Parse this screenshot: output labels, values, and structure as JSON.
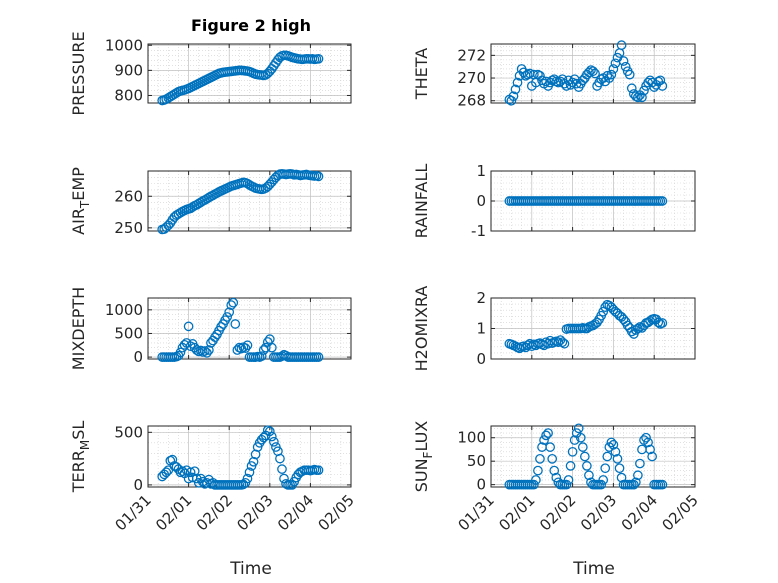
{
  "figure_title": "Figure 2 high",
  "x_axis_label": "Time",
  "x_tick_labels": [
    "01/31",
    "02/01",
    "02/02",
    "02/03",
    "02/04",
    "02/05"
  ],
  "colors": {
    "marker": "#0072bd",
    "axes": "#262626",
    "grid": "#c0c0c0"
  },
  "chart_data": [
    {
      "type": "scatter",
      "ylabel": "PRESSURE",
      "ylim": [
        770,
        1005
      ],
      "yticks": [
        800,
        900,
        1000
      ],
      "ytick_labels": [
        "800",
        "900",
        "1000"
      ],
      "xlabel": "",
      "xlim": [
        0,
        5
      ],
      "x": [
        0.35,
        0.4,
        0.45,
        0.5,
        0.55,
        0.6,
        0.65,
        0.7,
        0.75,
        0.8,
        0.85,
        0.9,
        0.95,
        1.0,
        1.05,
        1.1,
        1.15,
        1.2,
        1.25,
        1.3,
        1.35,
        1.4,
        1.45,
        1.5,
        1.55,
        1.6,
        1.65,
        1.7,
        1.75,
        1.8,
        1.85,
        1.9,
        1.95,
        2.0,
        2.05,
        2.1,
        2.15,
        2.2,
        2.25,
        2.3,
        2.35,
        2.4,
        2.45,
        2.5,
        2.55,
        2.6,
        2.65,
        2.7,
        2.75,
        2.8,
        2.85,
        2.9,
        2.95,
        3.0,
        3.05,
        3.1,
        3.15,
        3.2,
        3.25,
        3.3,
        3.35,
        3.4,
        3.45,
        3.5,
        3.55,
        3.6,
        3.65,
        3.7,
        3.75,
        3.8,
        3.85,
        3.9,
        3.95,
        4.0,
        4.05,
        4.1,
        4.15,
        4.2
      ],
      "y": [
        780,
        782,
        785,
        790,
        795,
        800,
        805,
        810,
        815,
        818,
        820,
        822,
        825,
        828,
        832,
        836,
        840,
        844,
        848,
        852,
        856,
        860,
        864,
        868,
        872,
        876,
        880,
        884,
        888,
        890,
        892,
        893,
        894,
        895,
        896,
        897,
        898,
        899,
        900,
        900,
        899,
        898,
        897,
        895,
        892,
        888,
        885,
        883,
        882,
        881,
        880,
        882,
        888,
        896,
        906,
        918,
        930,
        942,
        952,
        958,
        960,
        960,
        958,
        955,
        952,
        950,
        948,
        946,
        945,
        944,
        945,
        946,
        946,
        945,
        946,
        944,
        945,
        946
      ]
    },
    {
      "type": "scatter",
      "ylabel": "THETA",
      "ylim": [
        267.8,
        273.0
      ],
      "yticks": [
        268,
        270,
        272
      ],
      "ytick_labels": [
        "268",
        "270",
        "272"
      ],
      "xlabel": "",
      "xlim": [
        0,
        5
      ],
      "x": [
        0.45,
        0.5,
        0.55,
        0.6,
        0.65,
        0.7,
        0.75,
        0.8,
        0.85,
        0.9,
        0.95,
        1.0,
        1.05,
        1.1,
        1.15,
        1.2,
        1.25,
        1.3,
        1.35,
        1.4,
        1.45,
        1.5,
        1.55,
        1.6,
        1.65,
        1.7,
        1.75,
        1.8,
        1.85,
        1.9,
        1.95,
        2.0,
        2.05,
        2.1,
        2.15,
        2.2,
        2.25,
        2.3,
        2.35,
        2.4,
        2.45,
        2.5,
        2.55,
        2.6,
        2.65,
        2.7,
        2.75,
        2.8,
        2.85,
        2.9,
        2.95,
        3.0,
        3.05,
        3.1,
        3.15,
        3.2,
        3.25,
        3.3,
        3.35,
        3.4,
        3.45,
        3.5,
        3.55,
        3.6,
        3.65,
        3.7,
        3.75,
        3.8,
        3.85,
        3.9,
        3.95,
        4.0,
        4.05,
        4.1,
        4.15,
        4.2
      ],
      "y": [
        268.1,
        268.0,
        268.4,
        269.0,
        269.6,
        270.2,
        270.8,
        270.5,
        270.2,
        270.3,
        270.4,
        269.3,
        270.3,
        269.6,
        270.3,
        270.2,
        269.8,
        269.5,
        269.7,
        269.3,
        269.6,
        269.8,
        269.9,
        269.7,
        269.6,
        269.7,
        269.9,
        269.5,
        269.3,
        269.8,
        269.4,
        269.6,
        269.9,
        269.5,
        269.2,
        269.5,
        269.8,
        270.0,
        270.3,
        270.5,
        270.7,
        270.6,
        270.4,
        269.3,
        269.6,
        269.9,
        270.0,
        269.7,
        270.2,
        270.0,
        270.3,
        270.8,
        271.3,
        271.8,
        272.2,
        272.9,
        271.5,
        271.0,
        270.6,
        270.3,
        269.1,
        268.6,
        268.4,
        268.3,
        268.5,
        268.3,
        268.9,
        269.3,
        269.6,
        269.8,
        269.6,
        269.2,
        269.4,
        269.7,
        269.8,
        269.3
      ]
    },
    {
      "type": "scatter",
      "ylabel": "AIR_TEMP",
      "ylim": [
        249,
        268
      ],
      "yticks": [
        250,
        260
      ],
      "ytick_labels": [
        "250",
        "260"
      ],
      "xlabel": "",
      "xlim": [
        0,
        5
      ],
      "x": [
        0.35,
        0.4,
        0.45,
        0.5,
        0.55,
        0.6,
        0.65,
        0.7,
        0.75,
        0.8,
        0.85,
        0.9,
        0.95,
        1.0,
        1.05,
        1.1,
        1.15,
        1.2,
        1.25,
        1.3,
        1.35,
        1.4,
        1.45,
        1.5,
        1.55,
        1.6,
        1.65,
        1.7,
        1.75,
        1.8,
        1.85,
        1.9,
        1.95,
        2.0,
        2.05,
        2.1,
        2.15,
        2.2,
        2.25,
        2.3,
        2.35,
        2.4,
        2.45,
        2.5,
        2.55,
        2.6,
        2.65,
        2.7,
        2.75,
        2.8,
        2.85,
        2.9,
        2.95,
        3.0,
        3.05,
        3.1,
        3.15,
        3.2,
        3.25,
        3.3,
        3.35,
        3.4,
        3.45,
        3.5,
        3.55,
        3.6,
        3.65,
        3.7,
        3.75,
        3.8,
        3.85,
        3.9,
        3.95,
        4.0,
        4.05,
        4.1,
        4.15,
        4.2
      ],
      "y": [
        249.5,
        249.6,
        250.2,
        250.8,
        251.5,
        252.5,
        253.4,
        254.0,
        254.4,
        254.8,
        255.2,
        255.5,
        255.8,
        256.0,
        256.2,
        256.6,
        257.0,
        257.3,
        257.7,
        258.1,
        258.5,
        258.8,
        259.2,
        259.6,
        260.0,
        260.3,
        260.7,
        261.0,
        261.4,
        261.7,
        262.0,
        262.3,
        262.6,
        262.9,
        263.2,
        263.4,
        263.6,
        263.8,
        264.0,
        264.2,
        264.4,
        264.3,
        264.0,
        263.6,
        263.2,
        262.9,
        262.6,
        262.4,
        262.3,
        262.2,
        262.3,
        262.6,
        263.1,
        263.8,
        264.5,
        265.3,
        266.0,
        266.6,
        267.0,
        267.1,
        267.0,
        266.9,
        267.0,
        267.1,
        267.0,
        266.8,
        266.9,
        266.8,
        266.6,
        266.7,
        266.8,
        266.9,
        266.7,
        266.6,
        266.5,
        266.4,
        266.5,
        266.3
      ]
    },
    {
      "type": "scatter",
      "ylabel": "RAINFALL",
      "ylim": [
        -1,
        1
      ],
      "yticks": [
        -1,
        0,
        1
      ],
      "ytick_labels": [
        "-1",
        "0",
        "1"
      ],
      "xlabel": "",
      "xlim": [
        0,
        5
      ],
      "x_start": 0.45,
      "x_end": 4.2,
      "x_step": 0.05,
      "constant_value": 0
    },
    {
      "type": "scatter",
      "ylabel": "MIXDEPTH",
      "ylim": [
        -40,
        1250
      ],
      "yticks": [
        0,
        500,
        1000
      ],
      "ytick_labels": [
        "0",
        "500",
        "1000"
      ],
      "xlabel": "",
      "xlim": [
        0,
        5
      ],
      "x": [
        0.35,
        0.4,
        0.45,
        0.5,
        0.55,
        0.6,
        0.65,
        0.7,
        0.75,
        0.8,
        0.85,
        0.9,
        0.95,
        1.0,
        1.05,
        1.1,
        1.15,
        1.2,
        1.25,
        1.3,
        1.35,
        1.4,
        1.45,
        1.5,
        1.55,
        1.6,
        1.65,
        1.7,
        1.75,
        1.8,
        1.85,
        1.9,
        1.95,
        2.0,
        2.05,
        2.1,
        2.15,
        2.2,
        2.25,
        2.3,
        2.35,
        2.4,
        2.45,
        2.5,
        2.55,
        2.6,
        2.65,
        2.7,
        2.75,
        2.8,
        2.85,
        2.9,
        2.95,
        3.0,
        3.05,
        3.1,
        3.15,
        3.2,
        3.25,
        3.3,
        3.35,
        3.4,
        3.45,
        3.5,
        3.55,
        3.6,
        3.65,
        3.7,
        3.75,
        3.8,
        3.85,
        3.9,
        3.95,
        4.0,
        4.05,
        4.1,
        4.15,
        4.2
      ],
      "y": [
        0,
        0,
        0,
        0,
        0,
        0,
        0,
        10,
        30,
        100,
        200,
        260,
        300,
        650,
        230,
        280,
        200,
        150,
        120,
        140,
        110,
        130,
        90,
        150,
        300,
        350,
        420,
        480,
        560,
        640,
        700,
        780,
        850,
        950,
        1100,
        1150,
        700,
        150,
        200,
        180,
        210,
        190,
        250,
        0,
        0,
        0,
        0,
        10,
        0,
        20,
        150,
        200,
        320,
        380,
        200,
        0,
        0,
        0,
        0,
        20,
        50,
        30,
        0,
        0,
        0,
        0,
        0,
        0,
        0,
        0,
        0,
        0,
        0,
        0,
        0,
        0,
        0,
        0
      ]
    },
    {
      "type": "scatter",
      "ylabel": "H2OMIXRA",
      "ylim": [
        0,
        2
      ],
      "yticks": [
        0,
        1,
        2
      ],
      "ytick_labels": [
        "0",
        "1",
        "2"
      ],
      "xlabel": "",
      "xlim": [
        0,
        5
      ],
      "x": [
        0.45,
        0.5,
        0.55,
        0.6,
        0.65,
        0.7,
        0.75,
        0.8,
        0.85,
        0.9,
        0.95,
        1.0,
        1.05,
        1.1,
        1.15,
        1.2,
        1.25,
        1.3,
        1.35,
        1.4,
        1.45,
        1.5,
        1.55,
        1.6,
        1.65,
        1.7,
        1.75,
        1.8,
        1.85,
        1.9,
        1.95,
        2.0,
        2.05,
        2.1,
        2.15,
        2.2,
        2.25,
        2.3,
        2.35,
        2.4,
        2.45,
        2.5,
        2.55,
        2.6,
        2.65,
        2.7,
        2.75,
        2.8,
        2.85,
        2.9,
        2.95,
        3.0,
        3.05,
        3.1,
        3.15,
        3.2,
        3.25,
        3.3,
        3.35,
        3.4,
        3.45,
        3.5,
        3.55,
        3.6,
        3.65,
        3.7,
        3.75,
        3.8,
        3.85,
        3.9,
        3.95,
        4.0,
        4.05,
        4.1,
        4.15,
        4.2
      ],
      "y": [
        0.5,
        0.48,
        0.45,
        0.42,
        0.38,
        0.35,
        0.4,
        0.42,
        0.38,
        0.45,
        0.5,
        0.42,
        0.48,
        0.45,
        0.5,
        0.52,
        0.48,
        0.45,
        0.55,
        0.5,
        0.6,
        0.52,
        0.55,
        0.58,
        0.55,
        0.62,
        0.55,
        0.5,
        0.98,
        1.0,
        1.0,
        1.0,
        1.0,
        1.0,
        1.0,
        1.0,
        1.02,
        1.0,
        1.0,
        1.05,
        1.08,
        1.1,
        1.15,
        1.2,
        1.3,
        1.42,
        1.55,
        1.7,
        1.78,
        1.75,
        1.7,
        1.62,
        1.55,
        1.5,
        1.42,
        1.38,
        1.3,
        1.22,
        1.1,
        1.02,
        0.9,
        0.82,
        0.95,
        1.0,
        1.05,
        1.02,
        1.1,
        1.18,
        1.2,
        1.25,
        1.3,
        1.32,
        1.3,
        1.2,
        1.15,
        1.18
      ]
    },
    {
      "type": "scatter",
      "ylabel": "TERR_MSL",
      "ylim": [
        -20,
        560
      ],
      "yticks": [
        0,
        500
      ],
      "ytick_labels": [
        "0",
        "500"
      ],
      "xlabel": "Time",
      "xlim": [
        0,
        5
      ],
      "x": [
        0.35,
        0.4,
        0.45,
        0.5,
        0.55,
        0.6,
        0.65,
        0.7,
        0.75,
        0.8,
        0.85,
        0.9,
        0.95,
        1.0,
        1.05,
        1.1,
        1.15,
        1.2,
        1.25,
        1.3,
        1.35,
        1.4,
        1.45,
        1.5,
        1.55,
        1.6,
        1.65,
        1.7,
        1.75,
        1.8,
        1.85,
        1.9,
        1.95,
        2.0,
        2.05,
        2.1,
        2.15,
        2.2,
        2.25,
        2.3,
        2.35,
        2.4,
        2.45,
        2.5,
        2.55,
        2.6,
        2.65,
        2.7,
        2.75,
        2.8,
        2.85,
        2.9,
        2.95,
        3.0,
        3.05,
        3.1,
        3.15,
        3.2,
        3.25,
        3.3,
        3.35,
        3.4,
        3.45,
        3.5,
        3.55,
        3.6,
        3.65,
        3.7,
        3.75,
        3.8,
        3.85,
        3.9,
        3.95,
        4.0,
        4.05,
        4.1,
        4.15,
        4.2
      ],
      "y": [
        80,
        100,
        120,
        140,
        230,
        240,
        180,
        170,
        150,
        120,
        130,
        110,
        140,
        60,
        120,
        70,
        130,
        60,
        20,
        60,
        30,
        10,
        20,
        50,
        10,
        20,
        0,
        0,
        0,
        0,
        0,
        0,
        0,
        0,
        0,
        0,
        0,
        0,
        0,
        0,
        5,
        20,
        60,
        120,
        180,
        220,
        290,
        360,
        400,
        430,
        450,
        470,
        520,
        510,
        460,
        410,
        360,
        320,
        250,
        150,
        60,
        10,
        0,
        0,
        0,
        30,
        70,
        100,
        120,
        130,
        140,
        140,
        140,
        135,
        140,
        145,
        140,
        140
      ]
    },
    {
      "type": "scatter",
      "ylabel": "SUN_FLUX",
      "ylim": [
        -5,
        125
      ],
      "yticks": [
        0,
        50,
        100
      ],
      "ytick_labels": [
        "0",
        "50",
        "100"
      ],
      "xlabel": "Time",
      "xlim": [
        0,
        5
      ],
      "x": [
        0.45,
        0.5,
        0.55,
        0.6,
        0.65,
        0.7,
        0.75,
        0.8,
        0.85,
        0.9,
        0.95,
        1.0,
        1.05,
        1.1,
        1.15,
        1.2,
        1.25,
        1.3,
        1.35,
        1.4,
        1.45,
        1.5,
        1.55,
        1.6,
        1.65,
        1.7,
        1.75,
        1.8,
        1.85,
        1.9,
        1.95,
        2.0,
        2.05,
        2.1,
        2.15,
        2.2,
        2.25,
        2.3,
        2.35,
        2.4,
        2.45,
        2.5,
        2.55,
        2.6,
        2.65,
        2.7,
        2.75,
        2.8,
        2.85,
        2.9,
        2.95,
        3.0,
        3.05,
        3.1,
        3.15,
        3.2,
        3.25,
        3.3,
        3.35,
        3.4,
        3.45,
        3.5,
        3.55,
        3.6,
        3.65,
        3.7,
        3.75,
        3.8,
        3.85,
        3.9,
        3.95,
        4.0,
        4.05,
        4.1,
        4.15,
        4.2
      ],
      "y": [
        0,
        0,
        0,
        0,
        0,
        0,
        0,
        0,
        0,
        0,
        0,
        0,
        0,
        10,
        30,
        55,
        80,
        95,
        105,
        110,
        80,
        55,
        30,
        15,
        5,
        0,
        0,
        0,
        0,
        10,
        40,
        70,
        95,
        110,
        120,
        100,
        80,
        60,
        40,
        20,
        5,
        0,
        0,
        0,
        0,
        0,
        10,
        35,
        60,
        80,
        90,
        85,
        70,
        55,
        35,
        15,
        0,
        0,
        0,
        0,
        0,
        0,
        5,
        20,
        45,
        75,
        95,
        100,
        90,
        75,
        60,
        0,
        0,
        0,
        0,
        0
      ]
    }
  ]
}
